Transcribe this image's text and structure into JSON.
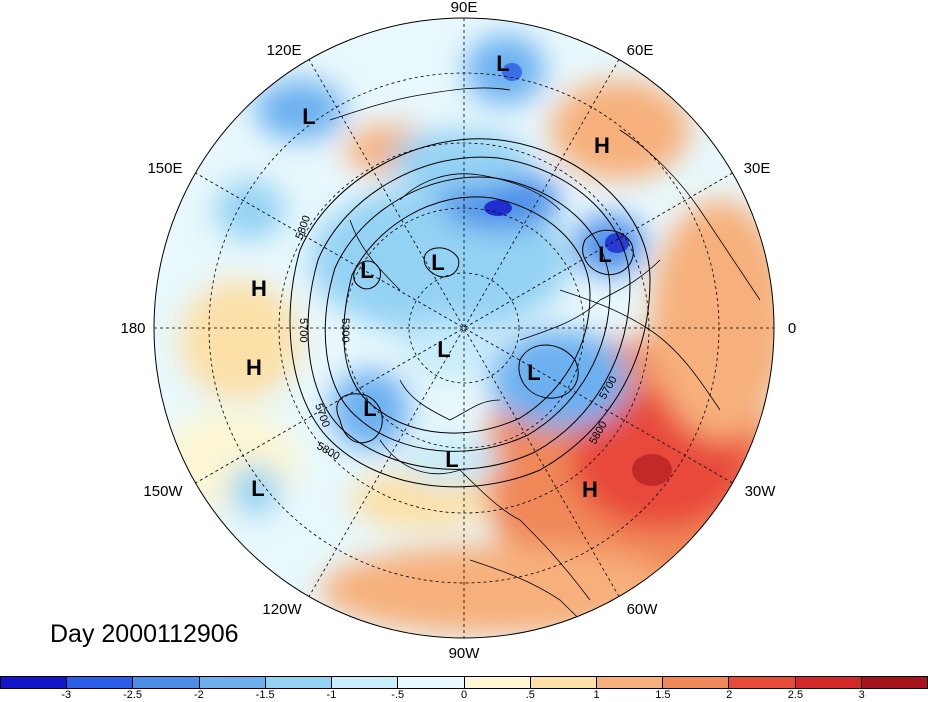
{
  "day_label": "Day 2000112906",
  "longitude_labels": [
    "90E",
    "60E",
    "30E",
    "0",
    "30W",
    "60W",
    "90W",
    "120W",
    "150W",
    "180",
    "150E",
    "120E"
  ],
  "pressure_centers": [
    "L",
    "L",
    "L",
    "L",
    "L",
    "L",
    "L",
    "L",
    "L",
    "L",
    "H",
    "H",
    "H",
    "H"
  ],
  "contour_labels": [
    "5800",
    "5700",
    "5300",
    "5700",
    "5800",
    "5700",
    "5800"
  ],
  "colorbar": {
    "ticks": [
      "-3",
      "-2.5",
      "-2",
      "-1.5",
      "-1",
      "-.5",
      "0",
      ".5",
      "1",
      "1.5",
      "2",
      "2.5",
      "3"
    ],
    "colors": [
      "#1414c8",
      "#2b5ee6",
      "#4a8ee8",
      "#6cb0f0",
      "#94d2f4",
      "#c8ecfa",
      "#e8f8fc",
      "#fcf6d4",
      "#fce0a8",
      "#f7b07c",
      "#f08858",
      "#e84a3a",
      "#d42828",
      "#a8141e"
    ]
  }
}
